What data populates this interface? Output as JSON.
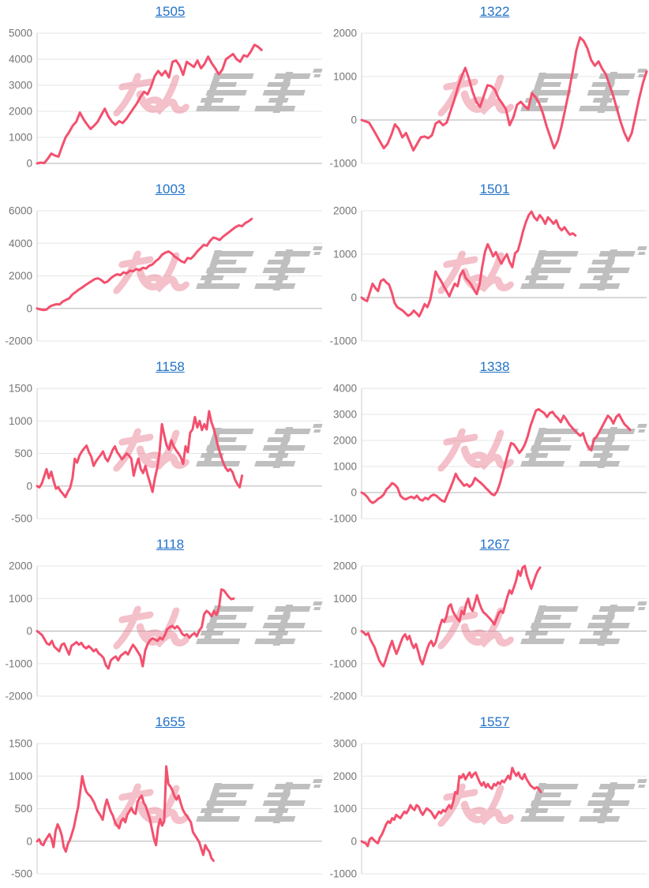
{
  "page": {
    "background": "#ffffff"
  },
  "colors": {
    "line": "#f3506e",
    "title_link": "#2272c8",
    "grid": "#e6e6e6",
    "baseline": "#b2b2b2",
    "axis": "#cccccc",
    "tick_label": "#757575",
    "watermark_pink": "#e8798e",
    "watermark_gray": "#a8a8a8"
  },
  "watermark": {
    "name": "minrepo-logo-watermark"
  },
  "chart_data": [
    {
      "type": "line",
      "title": "1505",
      "xlabel": "",
      "ylabel": "",
      "ylim": [
        0,
        5000
      ],
      "yticks": [
        0,
        1000,
        2000,
        3000,
        4000,
        5000
      ],
      "x_total": 81,
      "values": [
        0,
        30,
        10,
        180,
        380,
        300,
        260,
        650,
        1000,
        1200,
        1450,
        1600,
        1950,
        1700,
        1500,
        1320,
        1450,
        1600,
        1850,
        2100,
        1800,
        1600,
        1480,
        1620,
        1550,
        1700,
        1900,
        2100,
        2300,
        2550,
        2750,
        2650,
        2950,
        3350,
        3550,
        3380,
        3550,
        3300,
        3900,
        3950,
        3750,
        3400,
        3900,
        3800,
        3700,
        3950,
        3650,
        3820,
        4100,
        3850,
        3650,
        3420,
        3600,
        4000,
        4100,
        4200,
        4000,
        3900,
        4150,
        4100,
        4300,
        4550,
        4480,
        4350
      ]
    },
    {
      "type": "line",
      "title": "1322",
      "xlabel": "",
      "ylabel": "",
      "ylim": [
        -1000,
        2000
      ],
      "yticks": [
        -1000,
        0,
        1000,
        2000
      ],
      "x_total": 78,
      "values": [
        0,
        -30,
        -60,
        -200,
        -350,
        -500,
        -650,
        -550,
        -350,
        -100,
        -200,
        -400,
        -300,
        -500,
        -700,
        -550,
        -400,
        -380,
        -420,
        -350,
        -80,
        -30,
        -120,
        -60,
        200,
        450,
        750,
        1000,
        1200,
        950,
        650,
        420,
        300,
        550,
        800,
        780,
        700,
        500,
        380,
        250,
        -120,
        60,
        350,
        420,
        320,
        250,
        620,
        520,
        380,
        150,
        -150,
        -400,
        -650,
        -480,
        -150,
        250,
        650,
        1100,
        1600,
        1900,
        1820,
        1650,
        1380,
        1250,
        1350,
        1180,
        1050,
        800,
        550,
        250,
        -50,
        -300,
        -480,
        -300,
        100,
        500,
        850,
        1120
      ]
    },
    {
      "type": "line",
      "title": "1003",
      "xlabel": "",
      "ylabel": "",
      "ylim": [
        -2000,
        6000
      ],
      "yticks": [
        -2000,
        0,
        2000,
        4000,
        6000
      ],
      "x_total": 90,
      "values": [
        0,
        -60,
        -100,
        -60,
        120,
        200,
        260,
        240,
        420,
        520,
        620,
        850,
        1000,
        1150,
        1280,
        1420,
        1550,
        1680,
        1800,
        1850,
        1750,
        1580,
        1650,
        1850,
        2000,
        2100,
        2050,
        2220,
        2150,
        2320,
        2280,
        2420,
        2350,
        2500,
        2450,
        2620,
        2700,
        2900,
        3050,
        3300,
        3420,
        3500,
        3380,
        3180,
        3050,
        2900,
        2820,
        3100,
        3050,
        3250,
        3500,
        3700,
        3900,
        3850,
        4150,
        4350,
        4300,
        4200,
        4400,
        4550,
        4700,
        4850,
        5000,
        5100,
        5050,
        5250,
        5350,
        5500
      ]
    },
    {
      "type": "line",
      "title": "1501",
      "xlabel": "",
      "ylabel": "",
      "ylim": [
        -1000,
        2000
      ],
      "yticks": [
        -1000,
        0,
        1000,
        2000
      ],
      "x_total": 105,
      "values": [
        0,
        -50,
        -80,
        120,
        320,
        220,
        150,
        380,
        420,
        350,
        300,
        120,
        -120,
        -220,
        -260,
        -300,
        -360,
        -420,
        -380,
        -300,
        -360,
        -430,
        -300,
        -150,
        -220,
        -60,
        250,
        600,
        480,
        380,
        260,
        150,
        30,
        180,
        320,
        260,
        520,
        620,
        450,
        380,
        300,
        180,
        80,
        300,
        700,
        1050,
        1230,
        1100,
        950,
        1050,
        900,
        780,
        900,
        1000,
        820,
        700,
        1020,
        1080,
        1300,
        1550,
        1750,
        1900,
        1980,
        1850,
        1780,
        1900,
        1820,
        1700,
        1850,
        1780,
        1700,
        1780,
        1620,
        1550,
        1620,
        1530,
        1450,
        1480,
        1430
      ]
    },
    {
      "type": "line",
      "title": "1158",
      "xlabel": "",
      "ylabel": "",
      "ylim": [
        -500,
        1500
      ],
      "yticks": [
        -500,
        0,
        500,
        1000,
        1500
      ],
      "x_total": 122,
      "values": [
        0,
        -20,
        40,
        150,
        260,
        120,
        220,
        80,
        -40,
        -20,
        -80,
        -120,
        -170,
        -90,
        -30,
        120,
        420,
        360,
        470,
        530,
        580,
        620,
        520,
        450,
        310,
        380,
        430,
        480,
        530,
        430,
        380,
        460,
        550,
        610,
        520,
        470,
        410,
        450,
        500,
        470,
        420,
        160,
        310,
        420,
        260,
        200,
        310,
        160,
        40,
        -90,
        120,
        280,
        520,
        950,
        780,
        620,
        560,
        700,
        610,
        550,
        500,
        440,
        340,
        610,
        520,
        820,
        870,
        1060,
        900,
        1000,
        860,
        950,
        870,
        1150,
        980,
        880,
        740,
        580,
        470,
        360,
        280,
        230,
        260,
        210,
        100,
        30,
        -20,
        160
      ]
    },
    {
      "type": "line",
      "title": "1338",
      "xlabel": "",
      "ylabel": "",
      "ylim": [
        -1000,
        4000
      ],
      "yticks": [
        -1000,
        0,
        1000,
        2000,
        3000,
        4000
      ],
      "x_total": 104,
      "values": [
        0,
        -60,
        -160,
        -320,
        -400,
        -340,
        -240,
        -180,
        -80,
        120,
        220,
        360,
        300,
        180,
        -120,
        -220,
        -260,
        -200,
        -160,
        -220,
        -120,
        -260,
        -310,
        -200,
        -260,
        -140,
        -80,
        -120,
        -220,
        -310,
        -350,
        -80,
        150,
        420,
        720,
        520,
        400,
        260,
        320,
        220,
        320,
        560,
        460,
        380,
        280,
        160,
        60,
        -60,
        -100,
        50,
        350,
        750,
        1150,
        1550,
        1900,
        1850,
        1700,
        1520,
        1650,
        1850,
        2150,
        2550,
        2850,
        3150,
        3200,
        3120,
        3050,
        2900,
        3050,
        3100,
        2950,
        2850,
        2700,
        2950,
        2800,
        2620,
        2500,
        2380,
        2280,
        2180,
        2280,
        1950,
        1720,
        1620,
        2050,
        2150,
        2350,
        2550,
        2750,
        2950,
        2850,
        2650,
        2900,
        3000,
        2800,
        2620,
        2520,
        2400
      ]
    },
    {
      "type": "line",
      "title": "1118",
      "xlabel": "",
      "ylabel": "",
      "ylim": [
        -2000,
        2000
      ],
      "yticks": [
        -2000,
        -1000,
        0,
        1000,
        2000
      ],
      "x_total": 117,
      "values": [
        0,
        -60,
        -120,
        -250,
        -380,
        -420,
        -300,
        -480,
        -550,
        -620,
        -420,
        -380,
        -550,
        -720,
        -450,
        -400,
        -340,
        -420,
        -360,
        -480,
        -530,
        -460,
        -530,
        -620,
        -560,
        -680,
        -740,
        -820,
        -1050,
        -1150,
        -900,
        -830,
        -780,
        -900,
        -760,
        -700,
        -640,
        -720,
        -560,
        -420,
        -520,
        -640,
        -760,
        -1080,
        -600,
        -400,
        -280,
        -220,
        -260,
        -300,
        -200,
        -260,
        -120,
        60,
        120,
        160,
        80,
        150,
        60,
        -80,
        -140,
        -100,
        -200,
        -120,
        -60,
        -160,
        20,
        120,
        520,
        620,
        560,
        450,
        620,
        500,
        720,
        1280,
        1250,
        1150,
        1050,
        980,
        1000
      ]
    },
    {
      "type": "line",
      "title": "1267",
      "xlabel": "",
      "ylabel": "",
      "ylim": [
        -2000,
        2000
      ],
      "yticks": [
        -2000,
        -1000,
        0,
        1000,
        2000
      ],
      "x_total": 132,
      "values": [
        0,
        -50,
        -120,
        -60,
        -250,
        -380,
        -500,
        -700,
        -880,
        -1000,
        -1080,
        -900,
        -680,
        -480,
        -300,
        -520,
        -700,
        -540,
        -350,
        -180,
        -100,
        -260,
        -150,
        -380,
        -520,
        -400,
        -620,
        -880,
        -1020,
        -800,
        -580,
        -400,
        -300,
        -460,
        -350,
        -100,
        150,
        350,
        280,
        450,
        750,
        820,
        600,
        480,
        380,
        300,
        620,
        520,
        820,
        1000,
        720,
        620,
        850,
        1100,
        880,
        700,
        580,
        520,
        450,
        380,
        300,
        200,
        380,
        550,
        620,
        560,
        820,
        1050,
        1250,
        1150,
        1350,
        1550,
        1850,
        1700,
        1950,
        2000,
        1700,
        1500,
        1300,
        1500,
        1700,
        1850,
        1950
      ]
    },
    {
      "type": "line",
      "title": "1655",
      "xlabel": "",
      "ylabel": "",
      "ylim": [
        -500,
        1500
      ],
      "yticks": [
        -500,
        0,
        500,
        1000,
        1500
      ],
      "x_total": 140,
      "values": [
        0,
        30,
        -40,
        -60,
        10,
        60,
        110,
        40,
        -90,
        160,
        260,
        190,
        90,
        -90,
        -160,
        -40,
        20,
        120,
        220,
        380,
        520,
        750,
        1000,
        860,
        760,
        720,
        690,
        640,
        580,
        490,
        440,
        390,
        330,
        520,
        640,
        540,
        450,
        390,
        290,
        240,
        200,
        310,
        350,
        290,
        410,
        460,
        510,
        440,
        420,
        610,
        660,
        700,
        590,
        540,
        440,
        340,
        190,
        40,
        -60,
        210,
        340,
        240,
        310,
        1150,
        880,
        840,
        780,
        690,
        640,
        700,
        590,
        490,
        430,
        390,
        340,
        290,
        140,
        90,
        40,
        -10,
        -110,
        -210,
        -60,
        -120,
        -160,
        -260,
        -300
      ]
    },
    {
      "type": "line",
      "title": "1557",
      "xlabel": "",
      "ylabel": "",
      "ylim": [
        -1000,
        3000
      ],
      "yticks": [
        -1000,
        0,
        1000,
        2000,
        3000
      ],
      "x_total": 141,
      "values": [
        0,
        -40,
        -60,
        -150,
        60,
        110,
        40,
        -20,
        -60,
        110,
        210,
        360,
        510,
        610,
        560,
        710,
        660,
        810,
        760,
        710,
        810,
        910,
        860,
        960,
        1110,
        1010,
        960,
        1110,
        1060,
        910,
        810,
        910,
        1010,
        960,
        910,
        810,
        710,
        810,
        910,
        860,
        960,
        910,
        1010,
        1110,
        1010,
        1210,
        1510,
        1460,
        2000,
        1950,
        2060,
        1900,
        2010,
        2110,
        1960,
        2060,
        2110,
        1960,
        1810,
        1710,
        1810,
        1660,
        1760,
        1660,
        1610,
        1760,
        1710,
        1810,
        1760,
        1860,
        1810,
        1910,
        2010,
        1910,
        2250,
        2110,
        2010,
        2110,
        1960,
        1910,
        2060,
        1910,
        1810,
        1710,
        1660,
        1610,
        1660,
        1610,
        1510
      ]
    }
  ]
}
